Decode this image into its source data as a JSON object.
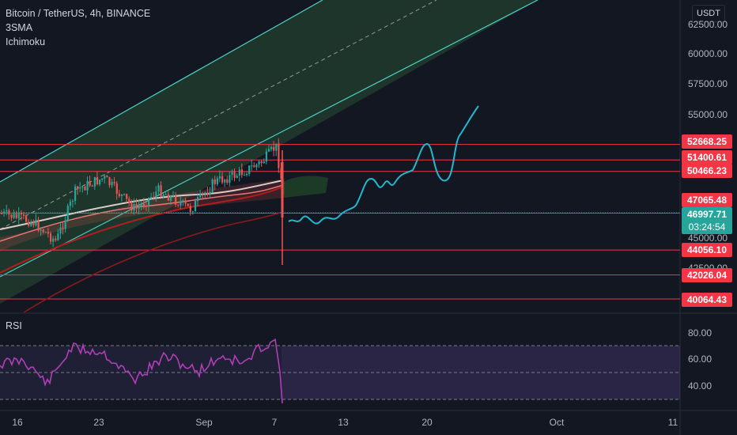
{
  "header": {
    "symbol_title": "Bitcoin / TetherUS, 4h, BINANCE",
    "indicators": [
      "3SMA",
      "Ichimoku"
    ]
  },
  "currency": "USDT",
  "price_axis": {
    "ticks": [
      "62500.00",
      "60000.00",
      "57500.00",
      "55000.00",
      "45000.00",
      "42500.00"
    ]
  },
  "levels": [
    {
      "label": "52668.25",
      "value": 52668.25,
      "color": "#f23645"
    },
    {
      "label": "51400.61",
      "value": 51400.61,
      "color": "#f23645"
    },
    {
      "label": "50466.23",
      "value": 50466.23,
      "color": "#f23645"
    },
    {
      "label": "47065.48",
      "value": 47065.48,
      "color": "#f23645"
    },
    {
      "label": "44056.10",
      "value": 44056.1,
      "color": "#f23645"
    },
    {
      "label": "42026.04",
      "value": 42026.04,
      "color": "#f23645"
    },
    {
      "label": "40064.43",
      "value": 40064.43,
      "color": "#f23645"
    }
  ],
  "current_price": {
    "value": "46997.71",
    "countdown": "03:24:54",
    "color": "#26a69a"
  },
  "rsi": {
    "label": "RSI",
    "ticks": [
      "80.00",
      "60.00",
      "40.00"
    ]
  },
  "time_axis": {
    "ticks": [
      "16",
      "23",
      "Sep",
      "7",
      "13",
      "20",
      "Oct",
      "11"
    ]
  },
  "colors": {
    "background": "#131722",
    "bull": "#26a69a",
    "bear": "#ef5350",
    "channel": "#4dd0c4",
    "projection": "#22b8cf",
    "rsi_line": "#b03fb7",
    "rsi_band": "#7e57c2"
  }
}
